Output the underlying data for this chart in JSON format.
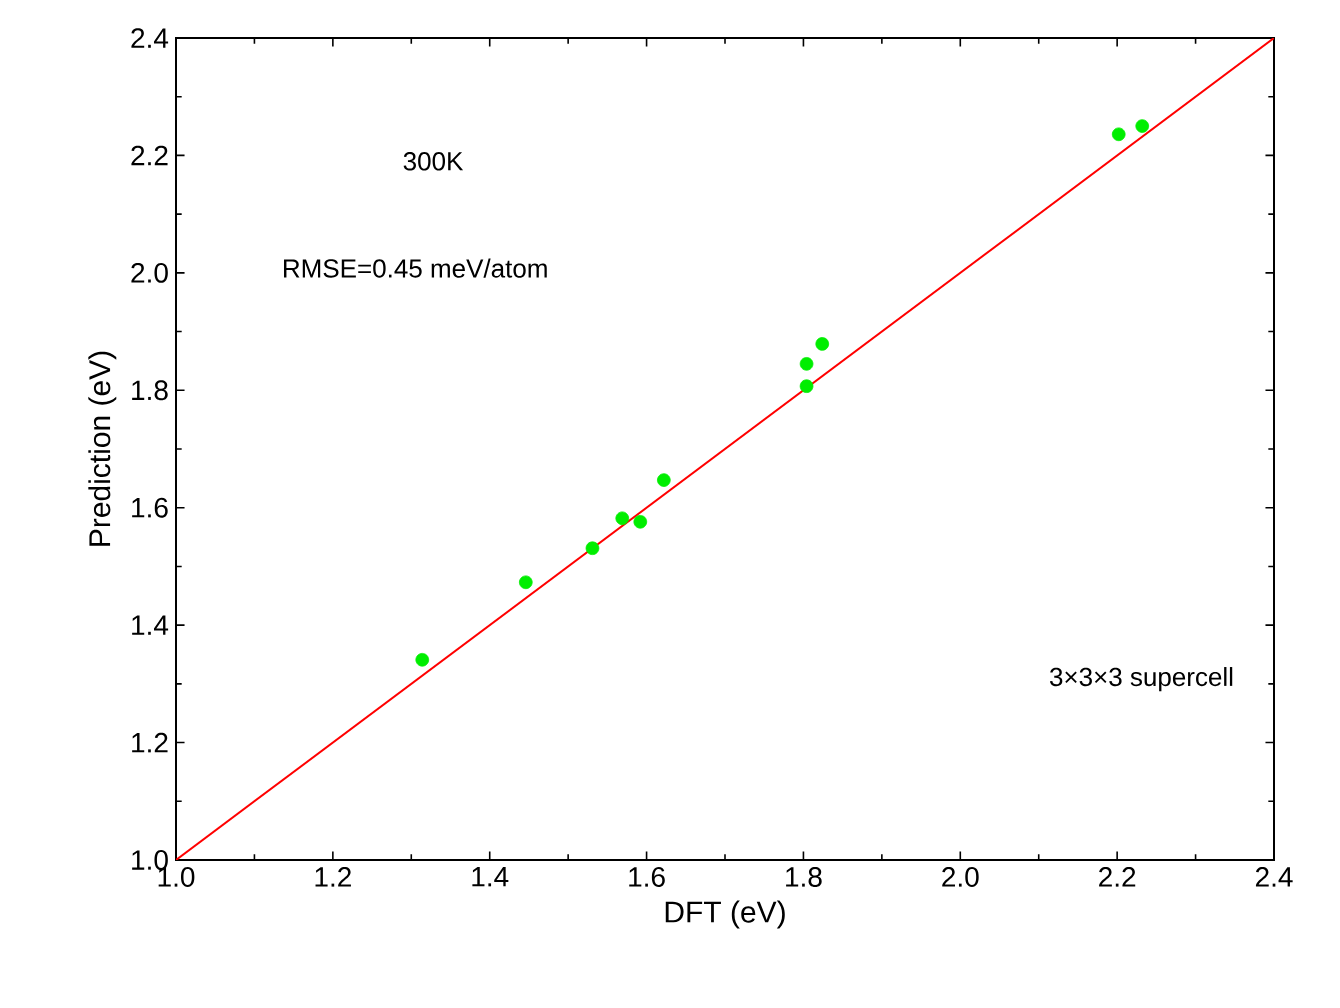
{
  "chart_data": {
    "type": "scatter",
    "xlabel": "DFT (eV)",
    "ylabel": "Prediction (eV)",
    "annotations": [
      "300K",
      "RMSE=0.45 meV/atom",
      "3×3×3 supercell"
    ],
    "series": [
      {
        "color": "#00ee00",
        "marker": "circle",
        "x": [
          1.314,
          1.446,
          1.531,
          1.569,
          1.592,
          1.622,
          1.804,
          1.804,
          1.824,
          2.202,
          2.232
        ],
        "values": [
          1.341,
          1.473,
          1.531,
          1.582,
          1.576,
          1.647,
          1.807,
          1.845,
          1.879,
          2.236,
          2.25
        ]
      },
      {
        "type": "line",
        "color": "#ff0000",
        "x": [
          1.0,
          2.4
        ],
        "values": [
          1.0,
          2.4
        ]
      }
    ],
    "xlim": [
      1.0,
      2.4
    ],
    "ylim": [
      1.0,
      2.4
    ],
    "xticks": [
      {
        "value": 1.0,
        "label": "1.0"
      },
      1.2,
      1.4,
      1.6,
      1.8,
      {
        "value": 2.0,
        "label": "2.0"
      },
      2.2,
      2.4
    ],
    "yticks": [
      {
        "value": 1.0,
        "label": "1.0"
      },
      1.2,
      1.4,
      1.6,
      1.8,
      {
        "value": 2.0,
        "label": "2.0"
      },
      2.2,
      2.4
    ],
    "grid": false
  }
}
